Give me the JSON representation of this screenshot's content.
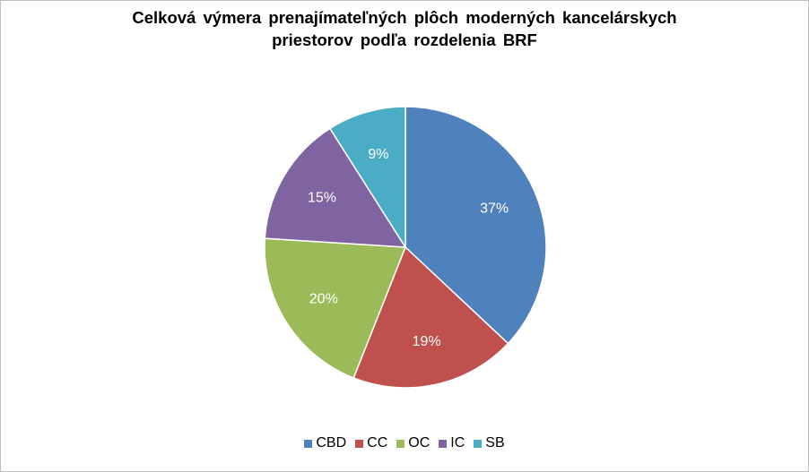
{
  "chart_data": {
    "type": "pie",
    "title_lines": [
      "Celková výmera prenajímateľných plôch moderných kancelárskych",
      "priestorov podľa rozdelenia BRF"
    ],
    "categories": [
      "CBD",
      "CC",
      "OC",
      "IC",
      "SB"
    ],
    "values": [
      37,
      19,
      20,
      15,
      9
    ],
    "labels": [
      "37%",
      "19%",
      "20%",
      "15%",
      "9%"
    ],
    "colors": [
      "#4F81BD",
      "#C0504D",
      "#9BBB59",
      "#8064A2",
      "#4BACC6"
    ],
    "start": "12 o'clock",
    "direction": "clockwise",
    "legend_position": "bottom"
  }
}
